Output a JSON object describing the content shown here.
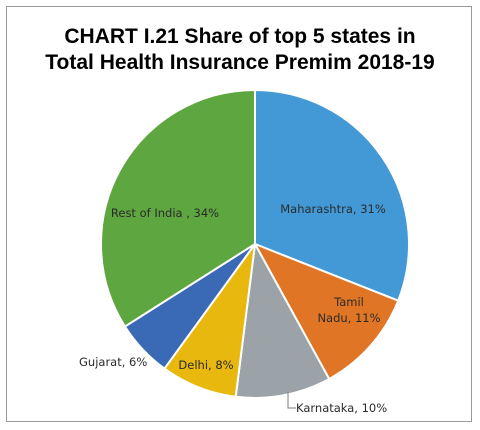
{
  "chart_data": {
    "type": "pie",
    "title_lines": [
      "CHART I.21 Share of top 5 states in",
      "Total Health Insurance Premim 2018-19"
    ],
    "slices": [
      {
        "name": "Maharashtra",
        "value": 31,
        "label_lines": [
          "Maharashtra, 31%"
        ],
        "color": "#4299d6"
      },
      {
        "name": "Tamil Nadu",
        "value": 11,
        "label_lines": [
          "Tamil",
          "Nadu, 11%"
        ],
        "color": "#e07625"
      },
      {
        "name": "Karnataka",
        "value": 10,
        "label_lines": [
          "Karnataka, 10%"
        ],
        "color": "#9ba3a8"
      },
      {
        "name": "Delhi",
        "value": 8,
        "label_lines": [
          "Delhi, 8%"
        ],
        "color": "#e8b80e"
      },
      {
        "name": "Gujarat",
        "value": 6,
        "label_lines": [
          "Gujarat, 6%"
        ],
        "color": "#3a69b6"
      },
      {
        "name": "Rest of India",
        "value": 34,
        "label_lines": [
          "Rest of India , 34%"
        ],
        "color": "#5ea63f"
      }
    ]
  }
}
